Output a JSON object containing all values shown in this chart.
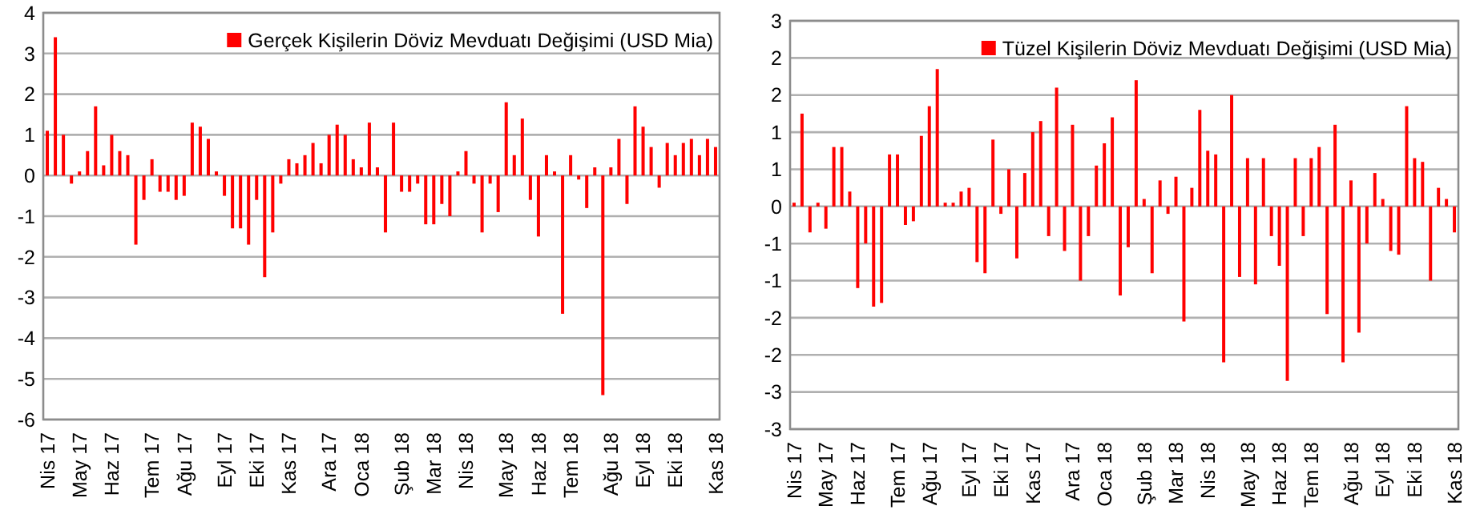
{
  "chart_data": [
    {
      "type": "bar",
      "categories": [
        "Nis 17",
        null,
        null,
        null,
        "May 17",
        null,
        null,
        null,
        "Haz 17",
        null,
        null,
        null,
        null,
        "Tem 17",
        null,
        null,
        null,
        "Ağu 17",
        null,
        null,
        null,
        null,
        "Eyl 17",
        null,
        null,
        null,
        "Eki 17",
        null,
        null,
        null,
        "Kas 17",
        null,
        null,
        null,
        null,
        "Ara 17",
        null,
        null,
        null,
        "Oca 18",
        null,
        null,
        null,
        null,
        "Şub 18",
        null,
        null,
        null,
        "Mar 18",
        null,
        null,
        null,
        "Nis 18",
        null,
        null,
        null,
        null,
        "May 18",
        null,
        null,
        null,
        "Haz 18",
        null,
        null,
        null,
        "Tem 18",
        null,
        null,
        null,
        null,
        "Ağu 18",
        null,
        null,
        null,
        "Eyl 18",
        null,
        null,
        null,
        "Eki 18",
        null,
        null,
        null,
        null,
        "Kas 18"
      ],
      "series": [
        {
          "name": "Gerçek Kişilerin Döviz Mevduatı Değişimi (USD Mia)",
          "color": "#ff0000",
          "values": [
            1.1,
            3.4,
            1.0,
            -0.2,
            0.1,
            0.6,
            1.7,
            0.25,
            1.0,
            0.6,
            0.5,
            -1.7,
            -0.6,
            0.4,
            -0.4,
            -0.4,
            -0.6,
            -0.5,
            1.3,
            1.2,
            0.9,
            0.1,
            -0.5,
            -1.3,
            -1.3,
            -1.7,
            -0.6,
            -2.5,
            -1.4,
            -0.2,
            0.4,
            0.3,
            0.5,
            0.8,
            0.3,
            1.0,
            1.25,
            1.0,
            0.4,
            0.2,
            1.3,
            0.2,
            -1.4,
            1.3,
            -0.4,
            -0.4,
            -0.2,
            -1.2,
            -1.2,
            -0.7,
            -1.0,
            0.1,
            0.6,
            -0.2,
            -1.4,
            -0.2,
            -0.9,
            1.8,
            0.5,
            1.4,
            -0.6,
            -1.5,
            0.5,
            0.1,
            -3.4,
            0.5,
            -0.1,
            -0.8,
            0.2,
            -5.4,
            0.2,
            0.9,
            -0.7,
            1.7,
            1.2,
            0.7,
            -0.3,
            0.8,
            0.5,
            0.8,
            0.9,
            0.5,
            0.9,
            0.7
          ]
        }
      ],
      "ylim": [
        -6,
        4
      ],
      "yticks": [
        -6,
        -5,
        -4,
        -3,
        -2,
        -1,
        0,
        1,
        2,
        3,
        4
      ],
      "grid": "y",
      "legend": "top right"
    },
    {
      "type": "bar",
      "categories": [
        "Nis 17",
        null,
        null,
        null,
        "May 17",
        null,
        null,
        null,
        "Haz 17",
        null,
        null,
        null,
        null,
        "Tem 17",
        null,
        null,
        null,
        "Ağu 17",
        null,
        null,
        null,
        null,
        "Eyl 17",
        null,
        null,
        null,
        "Eki 17",
        null,
        null,
        null,
        "Kas 17",
        null,
        null,
        null,
        null,
        "Ara 17",
        null,
        null,
        null,
        "Oca 18",
        null,
        null,
        null,
        null,
        "Şub 18",
        null,
        null,
        null,
        "Mar 18",
        null,
        null,
        null,
        "Nis 18",
        null,
        null,
        null,
        null,
        "May 18",
        null,
        null,
        null,
        "Haz 18",
        null,
        null,
        null,
        "Tem 18",
        null,
        null,
        null,
        null,
        "Ağu 18",
        null,
        null,
        null,
        "Eyl 18",
        null,
        null,
        null,
        "Eki 18",
        null,
        null,
        null,
        null,
        "Kas 18"
      ],
      "series": [
        {
          "name": "Tüzel Kişilerin Döviz Mevduatı Değişimi (USD Mia)",
          "color": "#ff0000",
          "values": [
            0.05,
            1.25,
            -0.35,
            0.05,
            -0.3,
            0.8,
            0.8,
            0.2,
            -1.1,
            -0.5,
            -1.35,
            -1.3,
            0.7,
            0.7,
            -0.25,
            -0.2,
            0.95,
            1.35,
            1.85,
            0.05,
            0.05,
            0.2,
            0.25,
            -0.75,
            -0.9,
            0.9,
            -0.1,
            0.5,
            -0.7,
            0.45,
            1.0,
            1.15,
            -0.4,
            1.6,
            -0.6,
            1.1,
            -1.0,
            -0.4,
            0.55,
            0.85,
            1.2,
            -1.2,
            -0.55,
            1.7,
            0.1,
            -0.9,
            0.35,
            -0.1,
            0.4,
            -1.55,
            0.25,
            1.3,
            0.75,
            0.7,
            -2.1,
            1.5,
            -0.95,
            0.65,
            -1.05,
            0.65,
            -0.4,
            -0.8,
            -2.35,
            0.65,
            -0.4,
            0.65,
            0.8,
            -1.45,
            1.1,
            -2.1,
            0.35,
            -1.7,
            -0.5,
            0.45,
            0.1,
            -0.6,
            -0.65,
            1.35,
            0.65,
            0.6,
            -1.0,
            0.25,
            0.1,
            -0.35
          ]
        }
      ],
      "ylim": [
        -3,
        2.5
      ],
      "yticks": [
        {
          "value": -3,
          "label": "-3"
        },
        {
          "value": -2.5,
          "label": "-3"
        },
        {
          "value": -2,
          "label": "-2"
        },
        {
          "value": -1.5,
          "label": "-2"
        },
        {
          "value": -1,
          "label": "-1"
        },
        {
          "value": -0.5,
          "label": "-1"
        },
        {
          "value": 0,
          "label": "0"
        },
        {
          "value": 0.5,
          "label": "1"
        },
        {
          "value": 1,
          "label": "1"
        },
        {
          "value": 1.5,
          "label": "2"
        },
        {
          "value": 2,
          "label": "2"
        },
        {
          "value": 2.5,
          "label": "3"
        }
      ],
      "grid": "y",
      "legend": "top right"
    }
  ]
}
